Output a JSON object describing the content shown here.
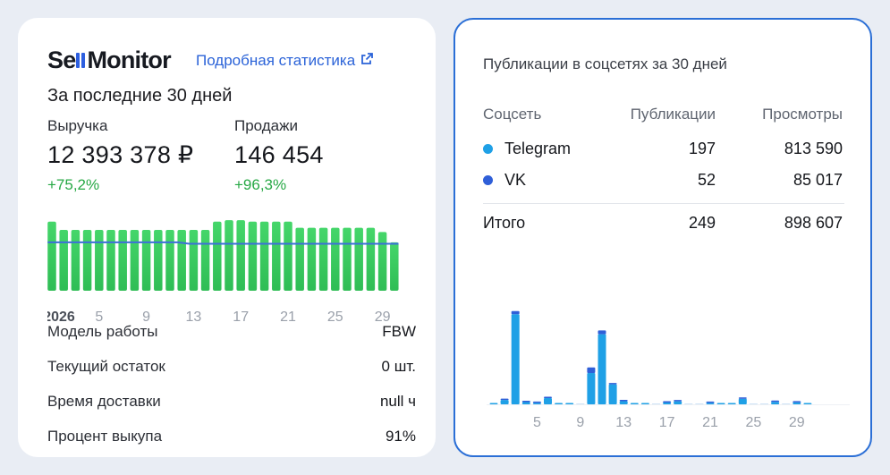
{
  "left": {
    "logo": {
      "part1": "Se",
      "part2": "Monitor"
    },
    "link_label": "Подробная статистика",
    "subtitle": "За последние 30 дней",
    "revenue": {
      "label": "Выручка",
      "value": "12 393 378 ₽",
      "change": "+75,2%"
    },
    "sales": {
      "label": "Продажи",
      "value": "146 454",
      "change": "+96,3%"
    },
    "info": [
      {
        "label": "Модель работы",
        "value": "FBW"
      },
      {
        "label": "Текущий остаток",
        "value": "0 шт."
      },
      {
        "label": "Время доставки",
        "value": "null ч"
      },
      {
        "label": "Процент выкупа",
        "value": "91%"
      }
    ],
    "colors": {
      "bar": "#34c759",
      "line": "#3d6fd8",
      "accent": "#2b63d8"
    }
  },
  "right": {
    "title": "Публикации в соцсетях за 30 дней",
    "columns": [
      "Соцсеть",
      "Публикации",
      "Просмотры"
    ],
    "rows": [
      {
        "network": "Telegram",
        "publications": "197",
        "views": "813 590",
        "color": "#1fa0e6"
      },
      {
        "network": "VK",
        "publications": "52",
        "views": "85 017",
        "color": "#2f5fd8"
      }
    ],
    "total": {
      "label": "Итого",
      "publications": "249",
      "views": "898 607"
    }
  },
  "chart_data": [
    {
      "type": "bar",
      "title": "",
      "x_tick_labels": [
        "2026",
        "5",
        "9",
        "13",
        "17",
        "21",
        "25",
        "29"
      ],
      "x_tick_days": [
        1,
        5,
        9,
        13,
        17,
        21,
        25,
        29
      ],
      "days": [
        1,
        2,
        3,
        4,
        5,
        6,
        7,
        8,
        9,
        10,
        11,
        12,
        13,
        14,
        15,
        16,
        17,
        18,
        19,
        20,
        21,
        22,
        23,
        24,
        25,
        26,
        27,
        28,
        29,
        30
      ],
      "series": [
        {
          "values": [
            100,
            88,
            88,
            88,
            88,
            88,
            88,
            88,
            88,
            88,
            88,
            88,
            88,
            88,
            100,
            102,
            102,
            100,
            100,
            100,
            100,
            91,
            91,
            91,
            91,
            91,
            91,
            91,
            85,
            70
          ]
        },
        {
          "type": "line",
          "values": [
            70,
            70,
            70,
            70,
            70,
            70,
            70,
            70,
            70,
            70,
            70,
            70,
            68,
            68,
            68,
            68,
            68,
            68,
            68,
            68,
            68,
            68,
            68,
            68,
            68,
            68,
            68,
            68,
            68,
            68
          ]
        }
      ],
      "ylim": [
        0,
        110
      ]
    },
    {
      "type": "bar",
      "title": "",
      "x_tick_labels": [
        "5",
        "9",
        "13",
        "17",
        "21",
        "25",
        "29"
      ],
      "x_tick_days": [
        5,
        9,
        13,
        17,
        21,
        25,
        29
      ],
      "days": [
        1,
        2,
        3,
        4,
        5,
        6,
        7,
        8,
        9,
        10,
        11,
        12,
        13,
        14,
        15,
        16,
        17,
        18,
        19,
        20,
        21,
        22,
        23,
        24,
        25,
        26,
        27,
        28,
        29,
        30
      ],
      "series": [
        {
          "name": "Telegram",
          "values": [
            1,
            4,
            1,
            1,
            1,
            1,
            0,
            0,
            0,
            0,
            0,
            0,
            0,
            0,
            0,
            0,
            0,
            0,
            0,
            0,
            0,
            0,
            0,
            0,
            0,
            0,
            0,
            0,
            0,
            0
          ]
        },
        {
          "name": "VK",
          "values": [
            0,
            1,
            0,
            0,
            1,
            0,
            1,
            0,
            1,
            0,
            0,
            0,
            0,
            0,
            0,
            0,
            0,
            0,
            0,
            0,
            0,
            0,
            0,
            0,
            0,
            0,
            0,
            0,
            0,
            0
          ]
        }
      ],
      "telegram": [
        0.5,
        3.5,
        72,
        1.8,
        1.2,
        5,
        0.6,
        0.6,
        0,
        25,
        56,
        16,
        2.5,
        0.8,
        0.8,
        0,
        1.4,
        2.4,
        0,
        0,
        1.2,
        0.8,
        0.8,
        4.5,
        0,
        0,
        2,
        0,
        1.5,
        0.8
      ],
      "vk": [
        0,
        0.6,
        2.5,
        0.5,
        0.3,
        0.8,
        0,
        0,
        0,
        4.5,
        3,
        0.6,
        0.4,
        0,
        0,
        0,
        0.3,
        0.5,
        0,
        0,
        0.3,
        0,
        0,
        1,
        0,
        0,
        0.4,
        0,
        0.3,
        0
      ],
      "ylim": [
        0,
        80
      ]
    }
  ]
}
